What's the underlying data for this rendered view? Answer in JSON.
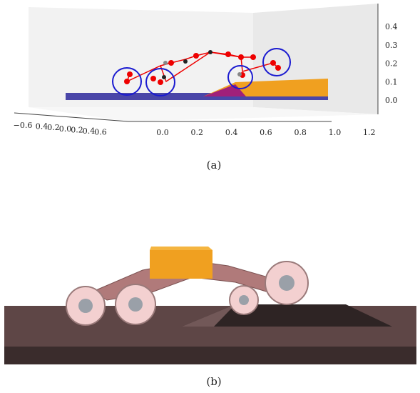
{
  "panel_a": {
    "x_ticks": [
      "0.0",
      "0.2",
      "0.4",
      "0.6",
      "0.8",
      "1.0",
      "1.2"
    ],
    "y_ticks": [
      "−0.6",
      "0.4",
      "0.2",
      "0.0",
      "0.2",
      "0.4",
      "0.6"
    ],
    "z_ticks": [
      "0.0",
      "0.1",
      "0.2",
      "0.3",
      "0.4"
    ],
    "caption": "(a)"
  },
  "panel_b": {
    "caption": "(b)"
  }
}
